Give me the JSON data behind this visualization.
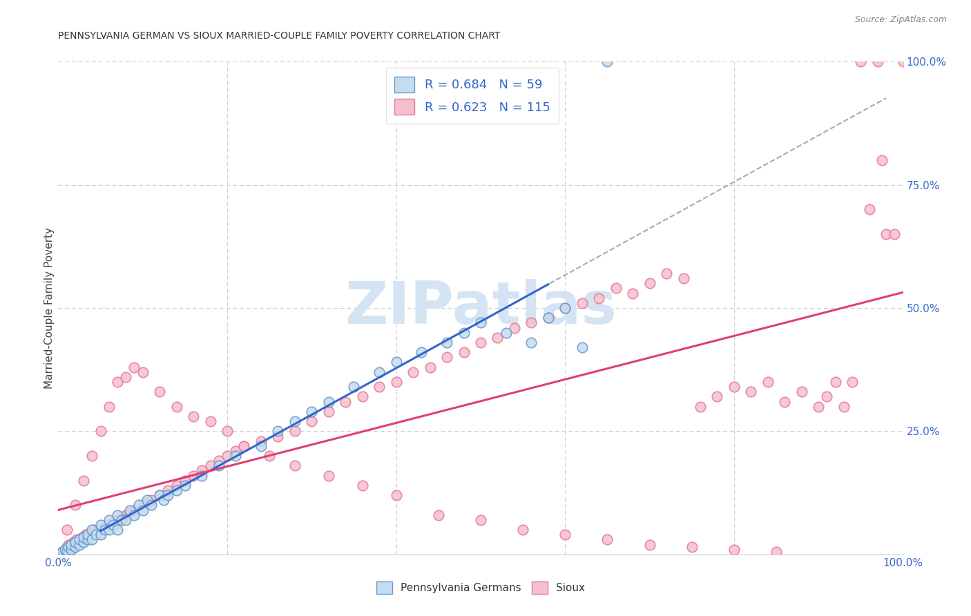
{
  "title": "PENNSYLVANIA GERMAN VS SIOUX MARRIED-COUPLE FAMILY POVERTY CORRELATION CHART",
  "source": "Source: ZipAtlas.com",
  "ylabel": "Married-Couple Family Poverty",
  "xlim": [
    0,
    100
  ],
  "ylim": [
    0,
    100
  ],
  "blue_R": 0.684,
  "blue_N": 59,
  "pink_R": 0.623,
  "pink_N": 115,
  "blue_face": "#C5DCEF",
  "blue_edge": "#6699CC",
  "pink_face": "#F5C0CE",
  "pink_edge": "#E87898",
  "blue_line": "#3366CC",
  "pink_line": "#E04070",
  "gray_line": "#AAAAAA",
  "legend_label_blue": "Pennsylvania Germans",
  "legend_label_pink": "Sioux",
  "watermark_color": "#D5E4F4",
  "grid_color": "#CCCCCC",
  "axis_label_color": "#3366CC",
  "title_color": "#333333",
  "source_color": "#888888",
  "background": "#FFFFFF",
  "blue_scatter_x": [
    0.5,
    0.8,
    1.0,
    1.2,
    1.5,
    1.5,
    2.0,
    2.0,
    2.5,
    2.5,
    3.0,
    3.0,
    3.5,
    3.5,
    4.0,
    4.0,
    4.5,
    5.0,
    5.0,
    5.5,
    6.0,
    6.0,
    6.5,
    7.0,
    7.0,
    7.5,
    8.0,
    8.5,
    9.0,
    9.5,
    10.0,
    10.5,
    11.0,
    12.0,
    12.5,
    13.0,
    14.0,
    15.0,
    17.0,
    19.0,
    21.0,
    24.0,
    26.0,
    28.0,
    30.0,
    32.0,
    35.0,
    38.0,
    40.0,
    43.0,
    46.0,
    48.0,
    50.0,
    53.0,
    56.0,
    58.0,
    60.0,
    62.0,
    65.0
  ],
  "blue_scatter_y": [
    0.5,
    1.0,
    0.8,
    1.5,
    1.0,
    2.0,
    1.5,
    2.5,
    2.0,
    3.0,
    2.5,
    3.5,
    3.0,
    4.0,
    3.0,
    5.0,
    4.0,
    4.0,
    6.0,
    5.0,
    5.0,
    7.0,
    6.0,
    5.0,
    8.0,
    7.0,
    7.0,
    9.0,
    8.0,
    10.0,
    9.0,
    11.0,
    10.0,
    12.0,
    11.0,
    12.0,
    13.0,
    14.0,
    16.0,
    18.0,
    20.0,
    22.0,
    25.0,
    27.0,
    29.0,
    31.0,
    34.0,
    37.0,
    39.0,
    41.0,
    43.0,
    45.0,
    47.0,
    45.0,
    43.0,
    48.0,
    50.0,
    42.0,
    100.0
  ],
  "pink_scatter_x": [
    0.5,
    0.8,
    1.0,
    1.2,
    1.5,
    1.8,
    2.0,
    2.2,
    2.5,
    2.8,
    3.0,
    3.2,
    3.5,
    3.8,
    4.0,
    4.2,
    4.5,
    5.0,
    5.5,
    6.0,
    6.5,
    7.0,
    7.5,
    8.0,
    8.5,
    9.0,
    10.0,
    10.5,
    11.0,
    12.0,
    13.0,
    14.0,
    15.0,
    16.0,
    17.0,
    18.0,
    19.0,
    20.0,
    21.0,
    22.0,
    24.0,
    26.0,
    28.0,
    30.0,
    32.0,
    34.0,
    36.0,
    38.0,
    40.0,
    42.0,
    44.0,
    46.0,
    48.0,
    50.0,
    52.0,
    54.0,
    56.0,
    58.0,
    60.0,
    62.0,
    64.0,
    66.0,
    68.0,
    70.0,
    72.0,
    74.0,
    76.0,
    78.0,
    80.0,
    82.0,
    84.0,
    86.0,
    88.0,
    90.0,
    91.0,
    92.0,
    93.0,
    94.0,
    95.0,
    96.0,
    97.0,
    97.5,
    98.0,
    99.0,
    100.0,
    1.0,
    2.0,
    3.0,
    4.0,
    5.0,
    6.0,
    7.0,
    8.0,
    9.0,
    10.0,
    12.0,
    14.0,
    16.0,
    18.0,
    20.0,
    22.0,
    25.0,
    28.0,
    32.0,
    36.0,
    40.0,
    45.0,
    50.0,
    55.0,
    60.0,
    65.0,
    70.0,
    75.0,
    80.0,
    85.0
  ],
  "pink_scatter_y": [
    0.5,
    1.0,
    1.5,
    2.0,
    1.0,
    2.5,
    2.0,
    3.0,
    2.5,
    3.5,
    3.0,
    4.0,
    3.5,
    4.5,
    4.0,
    5.0,
    4.5,
    5.0,
    5.5,
    6.0,
    6.5,
    7.0,
    7.5,
    8.0,
    8.5,
    9.0,
    10.0,
    10.5,
    11.0,
    12.0,
    13.0,
    14.0,
    15.0,
    16.0,
    17.0,
    18.0,
    19.0,
    20.0,
    21.0,
    22.0,
    23.0,
    24.0,
    25.0,
    27.0,
    29.0,
    31.0,
    32.0,
    34.0,
    35.0,
    37.0,
    38.0,
    40.0,
    41.0,
    43.0,
    44.0,
    46.0,
    47.0,
    48.0,
    50.0,
    51.0,
    52.0,
    54.0,
    53.0,
    55.0,
    57.0,
    56.0,
    30.0,
    32.0,
    34.0,
    33.0,
    35.0,
    31.0,
    33.0,
    30.0,
    32.0,
    35.0,
    30.0,
    35.0,
    100.0,
    70.0,
    100.0,
    80.0,
    65.0,
    65.0,
    100.0,
    5.0,
    10.0,
    15.0,
    20.0,
    25.0,
    30.0,
    35.0,
    36.0,
    38.0,
    37.0,
    33.0,
    30.0,
    28.0,
    27.0,
    25.0,
    22.0,
    20.0,
    18.0,
    16.0,
    14.0,
    12.0,
    8.0,
    7.0,
    5.0,
    4.0,
    3.0,
    2.0,
    1.5,
    1.0,
    0.5
  ]
}
